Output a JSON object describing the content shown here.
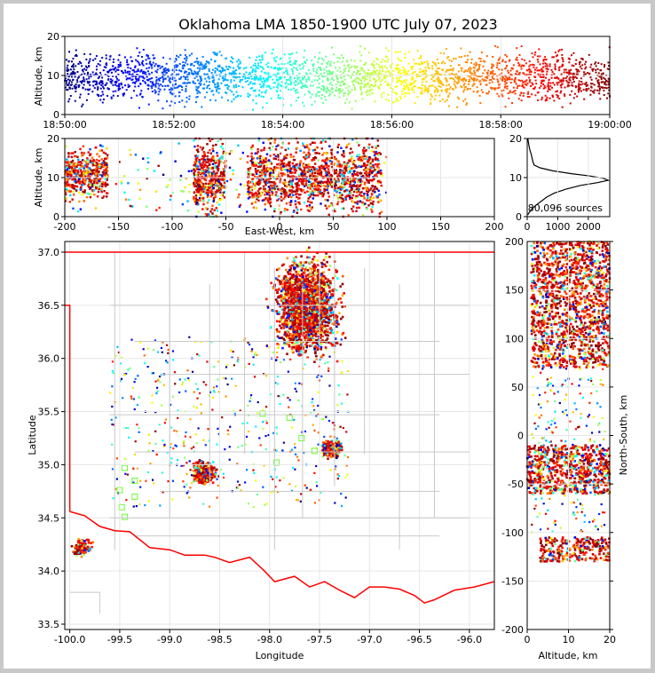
{
  "chart_data": [
    {
      "id": "time_height",
      "type": "scatter",
      "title": "Oklahoma LMA 1850-1900 UTC July 07, 2023",
      "xlabel": "",
      "ylabel": "Altitude, km",
      "xlim": [
        "18:50:00",
        "19:00:00"
      ],
      "ylim": [
        0,
        20
      ],
      "xticks": [
        "18:50:00",
        "18:52:00",
        "18:54:00",
        "18:56:00",
        "18:58:00",
        "19:00:00"
      ],
      "yticks": [
        "0",
        "10",
        "20"
      ],
      "colormap": "jet",
      "color_by": "time",
      "grid": true
    },
    {
      "id": "ew_altitude",
      "type": "scatter",
      "xlabel": "East-West, km",
      "ylabel": "Altitude, km",
      "xlim": [
        -200,
        200
      ],
      "ylim": [
        0,
        20
      ],
      "xticks": [
        "-200",
        "-150",
        "-100",
        "-50",
        "0",
        "50",
        "100",
        "150",
        "200"
      ],
      "yticks": [
        "0",
        "10",
        "20"
      ],
      "clusters": [
        {
          "x": [
            -200,
            -160
          ],
          "z": [
            4,
            18
          ]
        },
        {
          "x": [
            -80,
            -50
          ],
          "z": [
            0,
            20
          ]
        },
        {
          "x": [
            -30,
            95
          ],
          "z": [
            0,
            20
          ]
        }
      ],
      "grid": true
    },
    {
      "id": "altitude_histogram",
      "type": "line",
      "xlabel": "",
      "ylabel": "",
      "xlim": [
        0,
        2700
      ],
      "ylim": [
        0,
        20
      ],
      "xticks": [
        "0",
        "1000",
        "2000"
      ],
      "yticks": [
        "0",
        "10",
        "20"
      ],
      "annotation": "80,096 sources",
      "profile": [
        {
          "alt": 0.5,
          "count": 20
        },
        {
          "alt": 1.0,
          "count": 60
        },
        {
          "alt": 2.0,
          "count": 150
        },
        {
          "alt": 3.0,
          "count": 300
        },
        {
          "alt": 4.0,
          "count": 470
        },
        {
          "alt": 5.0,
          "count": 640
        },
        {
          "alt": 6.0,
          "count": 880
        },
        {
          "alt": 7.0,
          "count": 1250
        },
        {
          "alt": 8.0,
          "count": 1750
        },
        {
          "alt": 8.7,
          "count": 2300
        },
        {
          "alt": 9.3,
          "count": 2650
        },
        {
          "alt": 9.8,
          "count": 2500
        },
        {
          "alt": 10.4,
          "count": 2050
        },
        {
          "alt": 11.0,
          "count": 1450
        },
        {
          "alt": 11.7,
          "count": 850
        },
        {
          "alt": 12.5,
          "count": 420
        },
        {
          "alt": 13.2,
          "count": 230
        },
        {
          "alt": 14.0,
          "count": 190
        },
        {
          "alt": 15.0,
          "count": 160
        },
        {
          "alt": 16.0,
          "count": 130
        },
        {
          "alt": 17.0,
          "count": 90
        },
        {
          "alt": 18.0,
          "count": 60
        },
        {
          "alt": 19.0,
          "count": 40
        },
        {
          "alt": 20.0,
          "count": 20
        }
      ],
      "grid": true
    },
    {
      "id": "plan_view",
      "type": "scatter",
      "xlabel": "Longitude",
      "ylabel": "Latitude",
      "xlim": [
        -100.05,
        -95.75
      ],
      "ylim": [
        33.45,
        37.1
      ],
      "xticks": [
        "-100.0",
        "-99.5",
        "-99.0",
        "-98.5",
        "-98.0",
        "-97.5",
        "-97.0",
        "-96.5",
        "-96.0"
      ],
      "yticks": [
        "33.5",
        "34.0",
        "34.5",
        "35.0",
        "35.5",
        "36.0",
        "36.5",
        "37.0"
      ],
      "clusters": [
        {
          "lon": [
            -98.05,
            -97.2
          ],
          "lat": [
            35.9,
            37.05
          ]
        },
        {
          "lon": [
            -98.8,
            -98.5
          ],
          "lat": [
            34.8,
            35.05
          ]
        },
        {
          "lon": [
            -97.5,
            -97.25
          ],
          "lat": [
            35.05,
            35.25
          ]
        },
        {
          "lon": [
            -100.0,
            -99.75
          ],
          "lat": [
            34.12,
            34.32
          ]
        }
      ],
      "stations": [
        [
          -99.45,
          34.97
        ],
        [
          -99.35,
          34.85
        ],
        [
          -99.5,
          34.76
        ],
        [
          -99.48,
          34.6
        ],
        [
          -99.45,
          34.51
        ],
        [
          -99.35,
          34.7
        ],
        [
          -98.07,
          35.48
        ],
        [
          -97.93,
          35.02
        ],
        [
          -97.68,
          35.25
        ],
        [
          -97.8,
          35.44
        ],
        [
          -97.55,
          35.13
        ]
      ],
      "grid": true
    },
    {
      "id": "altitude_ns",
      "type": "scatter",
      "xlabel": "Altitude, km",
      "ylabel": "North-South, km",
      "xlim": [
        0,
        20
      ],
      "ylim": [
        -200,
        200
      ],
      "xticks": [
        "0",
        "10",
        "20"
      ],
      "yticks": [
        "-200",
        "-150",
        "-100",
        "-50",
        "0",
        "50",
        "100",
        "150",
        "200"
      ],
      "clusters": [
        {
          "z": [
            1,
            20
          ],
          "ns": [
            70,
            200
          ]
        },
        {
          "z": [
            0,
            20
          ],
          "ns": [
            -60,
            -10
          ]
        },
        {
          "z": [
            3,
            20
          ],
          "ns": [
            -130,
            -105
          ]
        }
      ],
      "grid": true
    }
  ],
  "colors": {
    "state_border": "#ff0000",
    "county_lines": "#c8c8c8",
    "station_marker": "#66ff33",
    "histogram_line": "#000000"
  }
}
